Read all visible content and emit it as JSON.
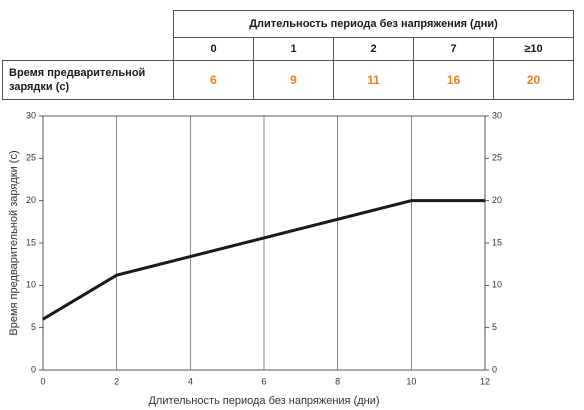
{
  "table": {
    "title": "Длительность периода без напряжения (дни)",
    "columns": [
      "0",
      "1",
      "2",
      "7",
      "≥10"
    ],
    "row_label": "Время предварительной зарядки (с)",
    "values": [
      6,
      9,
      11,
      16,
      20
    ]
  },
  "chart_data": {
    "type": "line",
    "x": [
      0,
      2,
      10,
      12
    ],
    "values": [
      6,
      11.2,
      20,
      20
    ],
    "color": "#1a1a1a",
    "xlabel": "Длительность периода без напряжения (дни)",
    "ylabel": "Время предварительной зарядки (с)",
    "xlim": [
      0,
      12
    ],
    "xticks": [
      0,
      2,
      4,
      6,
      8,
      10,
      12
    ],
    "ylim": [
      0,
      30
    ],
    "yticks": [
      0,
      5,
      10,
      15,
      20,
      25,
      30
    ],
    "y2lim": [
      0,
      30
    ],
    "y2ticks": [
      0,
      5,
      10,
      15,
      20,
      25,
      30
    ],
    "grid": "x"
  }
}
